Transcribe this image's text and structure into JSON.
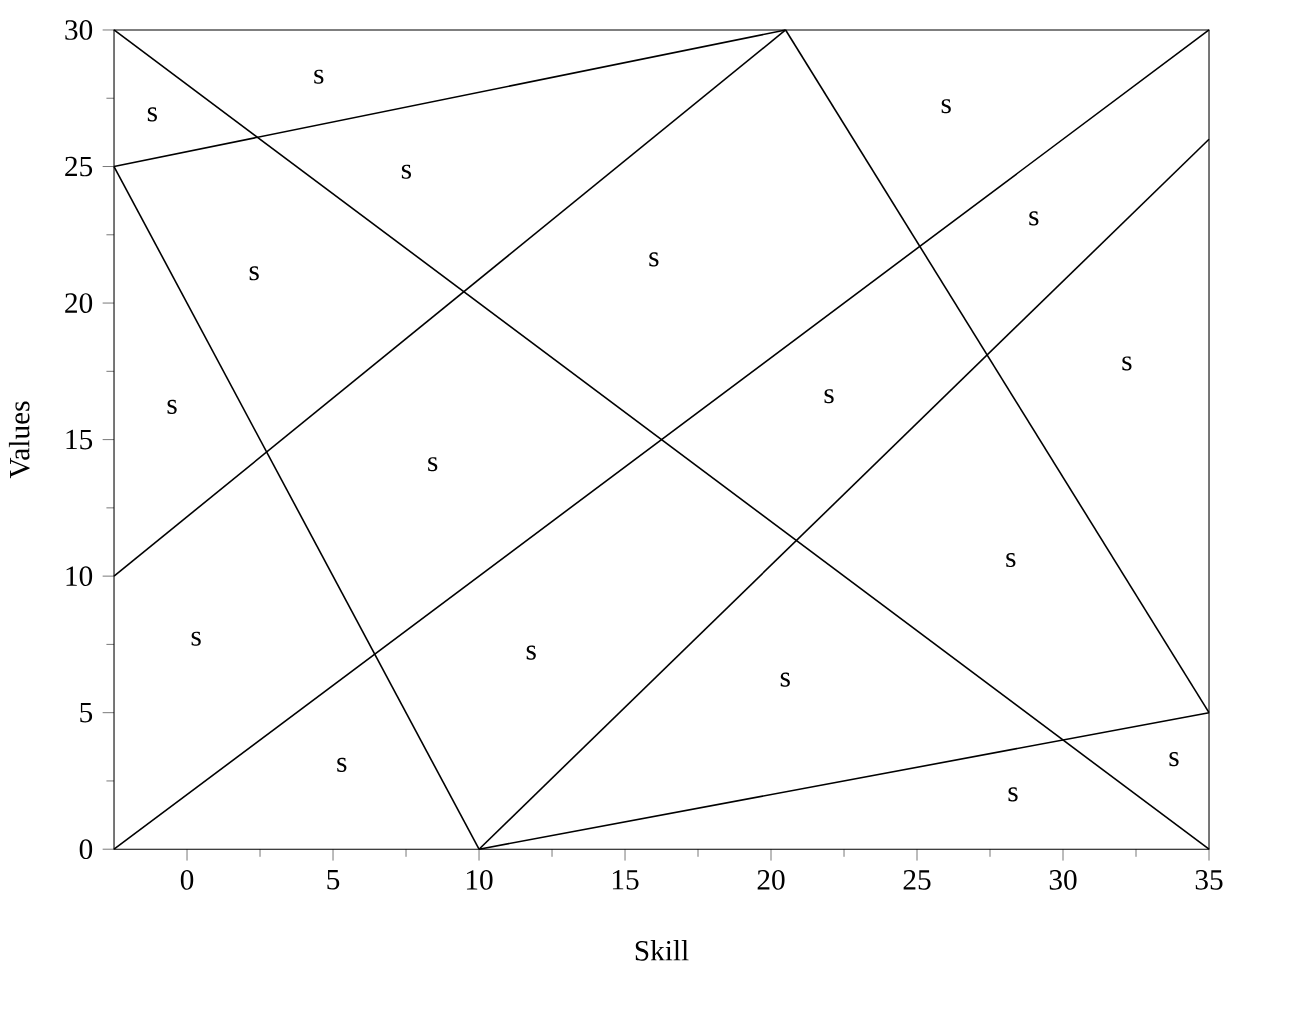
{
  "chart_data": {
    "type": "line",
    "xlabel": "Skill",
    "ylabel": "Values",
    "xlim": [
      -2.5,
      35
    ],
    "ylim": [
      0,
      30
    ],
    "xticks": [
      0,
      5,
      10,
      15,
      20,
      25,
      30,
      35
    ],
    "yticks": [
      0,
      5,
      10,
      15,
      20,
      25,
      30
    ],
    "marker": "none",
    "line_style": "solid",
    "series": [
      {
        "color": "#000000",
        "x": [
          -2.5,
          35
        ],
        "values": [
          30,
          0
        ]
      },
      {
        "color": "#000000",
        "x": [
          -2.5,
          20.5
        ],
        "values": [
          25,
          30
        ]
      },
      {
        "color": "#000000",
        "x": [
          -2.5,
          10
        ],
        "values": [
          25,
          0
        ]
      },
      {
        "color": "#000000",
        "x": [
          -2.5,
          20.5
        ],
        "values": [
          10,
          30
        ]
      },
      {
        "color": "#000000",
        "x": [
          -2.5,
          35
        ],
        "values": [
          0,
          30
        ]
      },
      {
        "color": "#000000",
        "x": [
          20.5,
          35
        ],
        "values": [
          30,
          5
        ]
      },
      {
        "color": "#000000",
        "x": [
          10,
          35
        ],
        "values": [
          0,
          26
        ]
      },
      {
        "color": "#000000",
        "x": [
          10,
          35
        ],
        "values": [
          0,
          5
        ]
      }
    ],
    "annotations": [
      "s",
      "s",
      "s",
      "s",
      "s",
      "s",
      "s",
      "s",
      "s",
      "s",
      "s",
      "s",
      "s",
      "s",
      "s",
      "s",
      "s",
      "s"
    ]
  }
}
